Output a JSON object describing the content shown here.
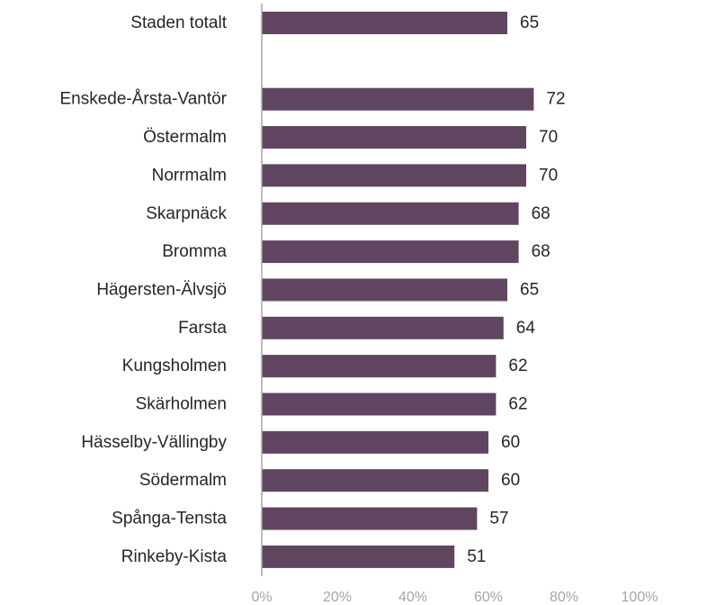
{
  "chart_data": {
    "type": "bar",
    "orientation": "horizontal",
    "categories": [
      "Staden totalt",
      "",
      "Enskede-Årsta-Vantör",
      "Östermalm",
      "Norrmalm",
      "Skarpnäck",
      "Bromma",
      "Hägersten-Älvsjö",
      "Farsta",
      "Kungsholmen",
      "Skärholmen",
      "Hässelby-Vällingby",
      "Södermalm",
      "Spånga-Tensta",
      "Rinkeby-Kista"
    ],
    "values": [
      65,
      null,
      72,
      70,
      70,
      68,
      68,
      65,
      64,
      62,
      62,
      60,
      60,
      57,
      51
    ],
    "value_labels": [
      "65",
      "",
      "72",
      "70",
      "70",
      "68",
      "68",
      "65",
      "64",
      "62",
      "62",
      "60",
      "60",
      "57",
      "51"
    ],
    "xlim": [
      0,
      100
    ],
    "xticks": [
      0,
      20,
      40,
      60,
      80,
      100
    ],
    "xtick_labels": [
      "0%",
      "20%",
      "40%",
      "60%",
      "80%",
      "100%"
    ],
    "xlabel": "",
    "ylabel": "",
    "title": "",
    "grid": false,
    "bar_color": "#604560",
    "axis_color": "#a6a6a6"
  }
}
